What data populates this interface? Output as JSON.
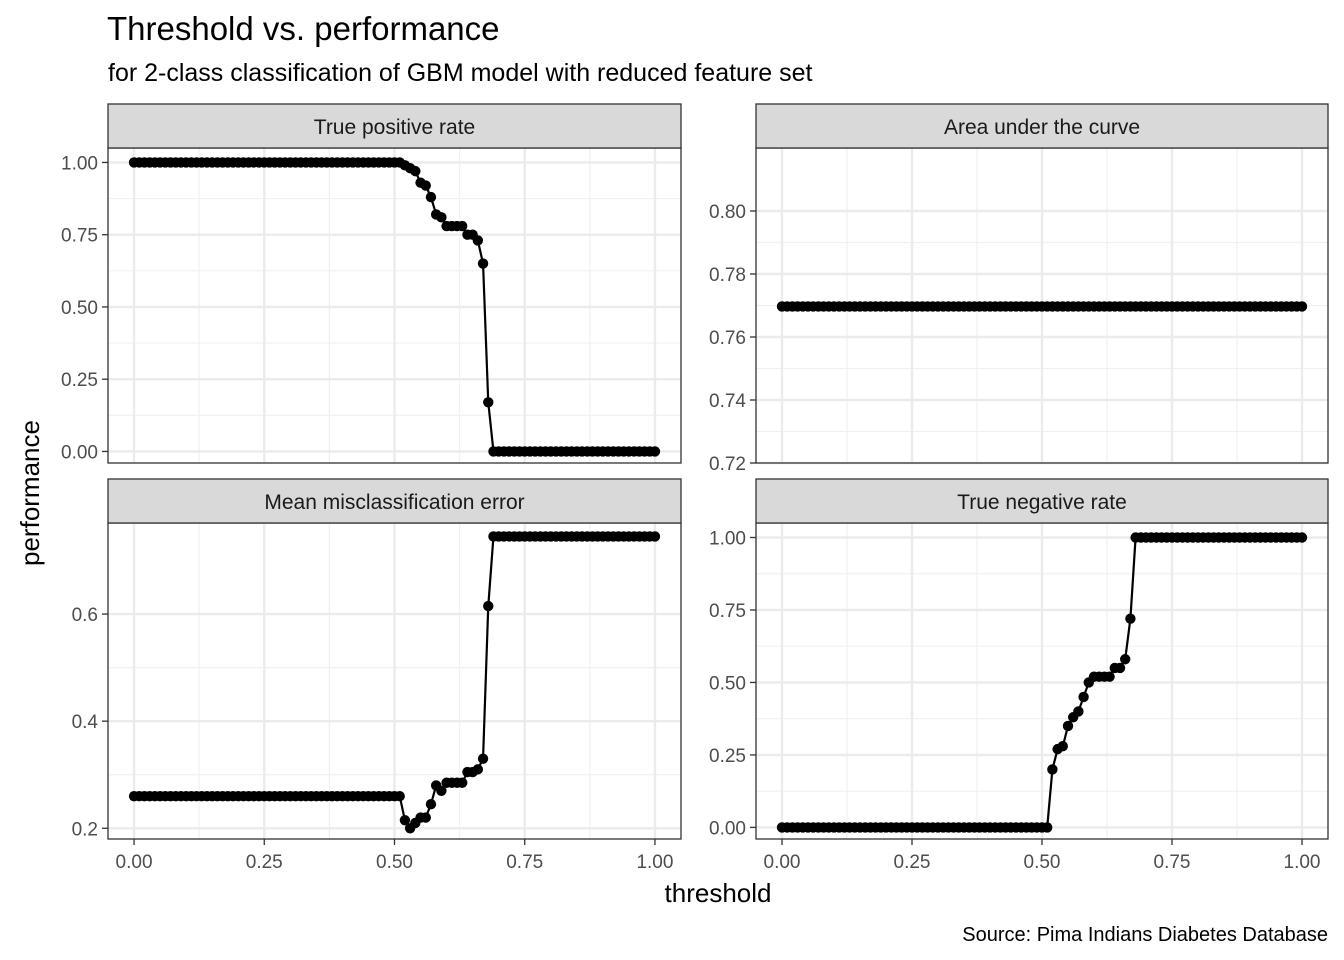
{
  "chart_data": {
    "type": "line",
    "title": "Threshold vs. performance",
    "subtitle": "for 2-class classification of GBM model with reduced feature set",
    "xlabel": "threshold",
    "ylabel": "performance",
    "caption": "Source: Pima Indians Diabetes Database",
    "grid": true,
    "markers": "points",
    "x_ticks": [
      "0.00",
      "0.25",
      "0.50",
      "0.75",
      "1.00"
    ],
    "xlim": [
      -0.05,
      1.05
    ],
    "x": [
      0.0,
      0.01,
      0.02,
      0.03,
      0.04,
      0.05,
      0.06,
      0.07,
      0.08,
      0.09,
      0.1,
      0.11,
      0.12,
      0.13,
      0.14,
      0.15,
      0.16,
      0.17,
      0.18,
      0.19,
      0.2,
      0.21,
      0.22,
      0.23,
      0.24,
      0.25,
      0.26,
      0.27,
      0.28,
      0.29,
      0.3,
      0.31,
      0.32,
      0.33,
      0.34,
      0.35,
      0.36,
      0.37,
      0.38,
      0.39,
      0.4,
      0.41,
      0.42,
      0.43,
      0.44,
      0.45,
      0.46,
      0.47,
      0.48,
      0.49,
      0.5,
      0.51,
      0.52,
      0.53,
      0.54,
      0.55,
      0.56,
      0.57,
      0.58,
      0.59,
      0.6,
      0.61,
      0.62,
      0.63,
      0.64,
      0.65,
      0.66,
      0.67,
      0.68,
      0.69,
      0.7,
      0.71,
      0.72,
      0.73,
      0.74,
      0.75,
      0.76,
      0.77,
      0.78,
      0.79,
      0.8,
      0.81,
      0.82,
      0.83,
      0.84,
      0.85,
      0.86,
      0.87,
      0.88,
      0.89,
      0.9,
      0.91,
      0.92,
      0.93,
      0.94,
      0.95,
      0.96,
      0.97,
      0.98,
      0.99,
      1.0
    ],
    "panels": [
      {
        "strip": "True positive rate",
        "ylim": [
          -0.04,
          1.05
        ],
        "y_ticks": [
          0.0,
          0.25,
          0.5,
          0.75,
          1.0
        ],
        "y_tick_labels": [
          "0.00",
          "0.25",
          "0.50",
          "0.75",
          "1.00"
        ],
        "values": [
          1.0,
          1.0,
          1.0,
          1.0,
          1.0,
          1.0,
          1.0,
          1.0,
          1.0,
          1.0,
          1.0,
          1.0,
          1.0,
          1.0,
          1.0,
          1.0,
          1.0,
          1.0,
          1.0,
          1.0,
          1.0,
          1.0,
          1.0,
          1.0,
          1.0,
          1.0,
          1.0,
          1.0,
          1.0,
          1.0,
          1.0,
          1.0,
          1.0,
          1.0,
          1.0,
          1.0,
          1.0,
          1.0,
          1.0,
          1.0,
          1.0,
          1.0,
          1.0,
          1.0,
          1.0,
          1.0,
          1.0,
          1.0,
          1.0,
          1.0,
          1.0,
          1.0,
          0.99,
          0.98,
          0.97,
          0.93,
          0.92,
          0.88,
          0.82,
          0.81,
          0.78,
          0.78,
          0.78,
          0.78,
          0.75,
          0.75,
          0.73,
          0.65,
          0.17,
          0.0,
          0.0,
          0.0,
          0.0,
          0.0,
          0.0,
          0.0,
          0.0,
          0.0,
          0.0,
          0.0,
          0.0,
          0.0,
          0.0,
          0.0,
          0.0,
          0.0,
          0.0,
          0.0,
          0.0,
          0.0,
          0.0,
          0.0,
          0.0,
          0.0,
          0.0,
          0.0,
          0.0,
          0.0,
          0.0,
          0.0,
          0.0
        ],
        "show_x_axis": false
      },
      {
        "strip": "Area under the curve",
        "ylim": [
          0.72,
          0.82
        ],
        "y_ticks": [
          0.72,
          0.74,
          0.76,
          0.78,
          0.8
        ],
        "y_tick_labels": [
          "0.72",
          "0.74",
          "0.76",
          "0.78",
          "0.80"
        ],
        "values": [
          0.7697,
          0.7697,
          0.7697,
          0.7697,
          0.7697,
          0.7697,
          0.7697,
          0.7697,
          0.7697,
          0.7697,
          0.7697,
          0.7697,
          0.7697,
          0.7697,
          0.7697,
          0.7697,
          0.7697,
          0.7697,
          0.7697,
          0.7697,
          0.7697,
          0.7697,
          0.7697,
          0.7697,
          0.7697,
          0.7697,
          0.7697,
          0.7697,
          0.7697,
          0.7697,
          0.7697,
          0.7697,
          0.7697,
          0.7697,
          0.7697,
          0.7697,
          0.7697,
          0.7697,
          0.7697,
          0.7697,
          0.7697,
          0.7697,
          0.7697,
          0.7697,
          0.7697,
          0.7697,
          0.7697,
          0.7697,
          0.7697,
          0.7697,
          0.7697,
          0.7697,
          0.7697,
          0.7697,
          0.7697,
          0.7697,
          0.7697,
          0.7697,
          0.7697,
          0.7697,
          0.7697,
          0.7697,
          0.7697,
          0.7697,
          0.7697,
          0.7697,
          0.7697,
          0.7697,
          0.7697,
          0.7697,
          0.7697,
          0.7697,
          0.7697,
          0.7697,
          0.7697,
          0.7697,
          0.7697,
          0.7697,
          0.7697,
          0.7697,
          0.7697,
          0.7697,
          0.7697,
          0.7697,
          0.7697,
          0.7697,
          0.7697,
          0.7697,
          0.7697,
          0.7697,
          0.7697,
          0.7697,
          0.7697,
          0.7697,
          0.7697,
          0.7697,
          0.7697,
          0.7697,
          0.7697,
          0.7697,
          0.7697
        ],
        "show_x_axis": false
      },
      {
        "strip": "Mean misclassification error",
        "ylim": [
          0.18,
          0.77
        ],
        "y_ticks": [
          0.2,
          0.4,
          0.6
        ],
        "y_tick_labels": [
          "0.2",
          "0.4",
          "0.6"
        ],
        "values": [
          0.26,
          0.26,
          0.26,
          0.26,
          0.26,
          0.26,
          0.26,
          0.26,
          0.26,
          0.26,
          0.26,
          0.26,
          0.26,
          0.26,
          0.26,
          0.26,
          0.26,
          0.26,
          0.26,
          0.26,
          0.26,
          0.26,
          0.26,
          0.26,
          0.26,
          0.26,
          0.26,
          0.26,
          0.26,
          0.26,
          0.26,
          0.26,
          0.26,
          0.26,
          0.26,
          0.26,
          0.26,
          0.26,
          0.26,
          0.26,
          0.26,
          0.26,
          0.26,
          0.26,
          0.26,
          0.26,
          0.26,
          0.26,
          0.26,
          0.26,
          0.26,
          0.26,
          0.215,
          0.2,
          0.21,
          0.22,
          0.22,
          0.245,
          0.28,
          0.27,
          0.285,
          0.285,
          0.285,
          0.285,
          0.305,
          0.305,
          0.31,
          0.33,
          0.615,
          0.745,
          0.745,
          0.745,
          0.745,
          0.745,
          0.745,
          0.745,
          0.745,
          0.745,
          0.745,
          0.745,
          0.745,
          0.745,
          0.745,
          0.745,
          0.745,
          0.745,
          0.745,
          0.745,
          0.745,
          0.745,
          0.745,
          0.745,
          0.745,
          0.745,
          0.745,
          0.745,
          0.745,
          0.745,
          0.745,
          0.745,
          0.745
        ],
        "show_x_axis": true
      },
      {
        "strip": "True negative rate",
        "ylim": [
          -0.04,
          1.05
        ],
        "y_ticks": [
          0.0,
          0.25,
          0.5,
          0.75,
          1.0
        ],
        "y_tick_labels": [
          "0.00",
          "0.25",
          "0.50",
          "0.75",
          "1.00"
        ],
        "values": [
          0.0,
          0.0,
          0.0,
          0.0,
          0.0,
          0.0,
          0.0,
          0.0,
          0.0,
          0.0,
          0.0,
          0.0,
          0.0,
          0.0,
          0.0,
          0.0,
          0.0,
          0.0,
          0.0,
          0.0,
          0.0,
          0.0,
          0.0,
          0.0,
          0.0,
          0.0,
          0.0,
          0.0,
          0.0,
          0.0,
          0.0,
          0.0,
          0.0,
          0.0,
          0.0,
          0.0,
          0.0,
          0.0,
          0.0,
          0.0,
          0.0,
          0.0,
          0.0,
          0.0,
          0.0,
          0.0,
          0.0,
          0.0,
          0.0,
          0.0,
          0.0,
          0.0,
          0.2,
          0.27,
          0.28,
          0.35,
          0.38,
          0.4,
          0.45,
          0.5,
          0.52,
          0.52,
          0.52,
          0.52,
          0.55,
          0.55,
          0.58,
          0.72,
          1.0,
          1.0,
          1.0,
          1.0,
          1.0,
          1.0,
          1.0,
          1.0,
          1.0,
          1.0,
          1.0,
          1.0,
          1.0,
          1.0,
          1.0,
          1.0,
          1.0,
          1.0,
          1.0,
          1.0,
          1.0,
          1.0,
          1.0,
          1.0,
          1.0,
          1.0,
          1.0,
          1.0,
          1.0,
          1.0,
          1.0,
          1.0,
          1.0
        ],
        "show_x_axis": true
      }
    ]
  }
}
